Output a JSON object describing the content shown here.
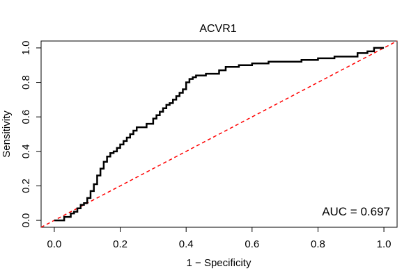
{
  "chart_data": {
    "type": "line",
    "title": "ACVR1",
    "xlabel": "1 − Specificity",
    "ylabel": "Sensitivity",
    "xlim": [
      -0.04,
      1.04
    ],
    "ylim": [
      -0.04,
      1.04
    ],
    "x_ticks": [
      0.0,
      0.2,
      0.4,
      0.6,
      0.8,
      1.0
    ],
    "y_ticks": [
      0.0,
      0.2,
      0.4,
      0.6,
      0.8,
      1.0
    ],
    "x_tick_labels": [
      "0.0",
      "0.2",
      "0.4",
      "0.6",
      "0.8",
      "1.0"
    ],
    "y_tick_labels": [
      "0.0",
      "0.2",
      "0.4",
      "0.6",
      "0.8",
      "1.0"
    ],
    "annotation": "AUC = 0.697",
    "colors": {
      "roc": "#000000",
      "reference": "#ff0000"
    },
    "series": [
      {
        "name": "ROC",
        "style": "solid",
        "x": [
          0.0,
          0.01,
          0.02,
          0.03,
          0.04,
          0.05,
          0.06,
          0.07,
          0.08,
          0.09,
          0.1,
          0.11,
          0.12,
          0.13,
          0.14,
          0.15,
          0.16,
          0.17,
          0.18,
          0.19,
          0.2,
          0.21,
          0.22,
          0.23,
          0.24,
          0.25,
          0.26,
          0.28,
          0.3,
          0.31,
          0.32,
          0.33,
          0.34,
          0.35,
          0.36,
          0.37,
          0.38,
          0.39,
          0.4,
          0.41,
          0.42,
          0.43,
          0.44,
          0.46,
          0.48,
          0.5,
          0.52,
          0.54,
          0.56,
          0.58,
          0.6,
          0.65,
          0.7,
          0.75,
          0.8,
          0.85,
          0.9,
          0.92,
          0.95,
          0.97,
          1.0
        ],
        "y": [
          0.0,
          0.0,
          0.0,
          0.02,
          0.02,
          0.04,
          0.05,
          0.07,
          0.09,
          0.1,
          0.13,
          0.17,
          0.21,
          0.26,
          0.3,
          0.34,
          0.37,
          0.39,
          0.4,
          0.42,
          0.44,
          0.46,
          0.48,
          0.5,
          0.52,
          0.54,
          0.54,
          0.56,
          0.59,
          0.61,
          0.63,
          0.65,
          0.67,
          0.68,
          0.7,
          0.72,
          0.74,
          0.76,
          0.8,
          0.82,
          0.83,
          0.84,
          0.84,
          0.85,
          0.85,
          0.87,
          0.89,
          0.89,
          0.9,
          0.9,
          0.91,
          0.92,
          0.92,
          0.93,
          0.94,
          0.95,
          0.95,
          0.97,
          0.98,
          1.0,
          1.0
        ]
      },
      {
        "name": "Reference",
        "style": "dashed",
        "x": [
          -0.04,
          1.04
        ],
        "y": [
          -0.04,
          1.04
        ]
      }
    ]
  }
}
